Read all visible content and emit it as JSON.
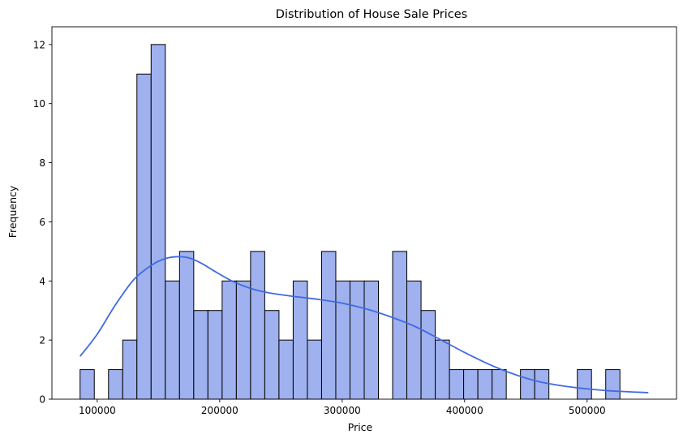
{
  "chart_data": {
    "type": "histogram",
    "title": "Distribution of House Sale Prices",
    "xlabel": "Price",
    "ylabel": "Frequency",
    "xlim": [
      63000,
      573000
    ],
    "ylim": [
      0,
      12.6
    ],
    "x_ticks": [
      100000,
      200000,
      300000,
      400000,
      500000
    ],
    "x_tick_labels": [
      "100000",
      "200000",
      "300000",
      "400000",
      "500000"
    ],
    "y_ticks": [
      0,
      2,
      4,
      6,
      8,
      10,
      12
    ],
    "y_tick_labels": [
      "0",
      "2",
      "4",
      "6",
      "8",
      "10",
      "12"
    ],
    "bin_start": 86000,
    "bin_width": 11600,
    "counts": [
      1,
      0,
      1,
      2,
      11,
      12,
      4,
      5,
      3,
      3,
      4,
      4,
      5,
      3,
      2,
      4,
      2,
      5,
      4,
      4,
      4,
      0,
      5,
      4,
      3,
      2,
      1,
      1,
      1,
      1,
      0,
      1,
      1,
      0,
      0,
      1,
      0,
      1
    ],
    "bar_color": "#9fb1ee",
    "bar_edge_color": "#000000",
    "kde": {
      "color": "#4169e1",
      "x": [
        86000,
        100000,
        115000,
        130000,
        145000,
        155000,
        165000,
        175000,
        185000,
        195000,
        210000,
        225000,
        240000,
        260000,
        280000,
        300000,
        320000,
        340000,
        360000,
        380000,
        400000,
        420000,
        440000,
        460000,
        480000,
        500000,
        520000,
        550000
      ],
      "y": [
        1.45,
        2.2,
        3.2,
        4.05,
        4.55,
        4.75,
        4.82,
        4.78,
        4.6,
        4.35,
        4.0,
        3.75,
        3.6,
        3.48,
        3.38,
        3.25,
        3.05,
        2.78,
        2.45,
        2.02,
        1.58,
        1.18,
        0.85,
        0.6,
        0.45,
        0.35,
        0.28,
        0.22
      ]
    },
    "grid": false
  }
}
